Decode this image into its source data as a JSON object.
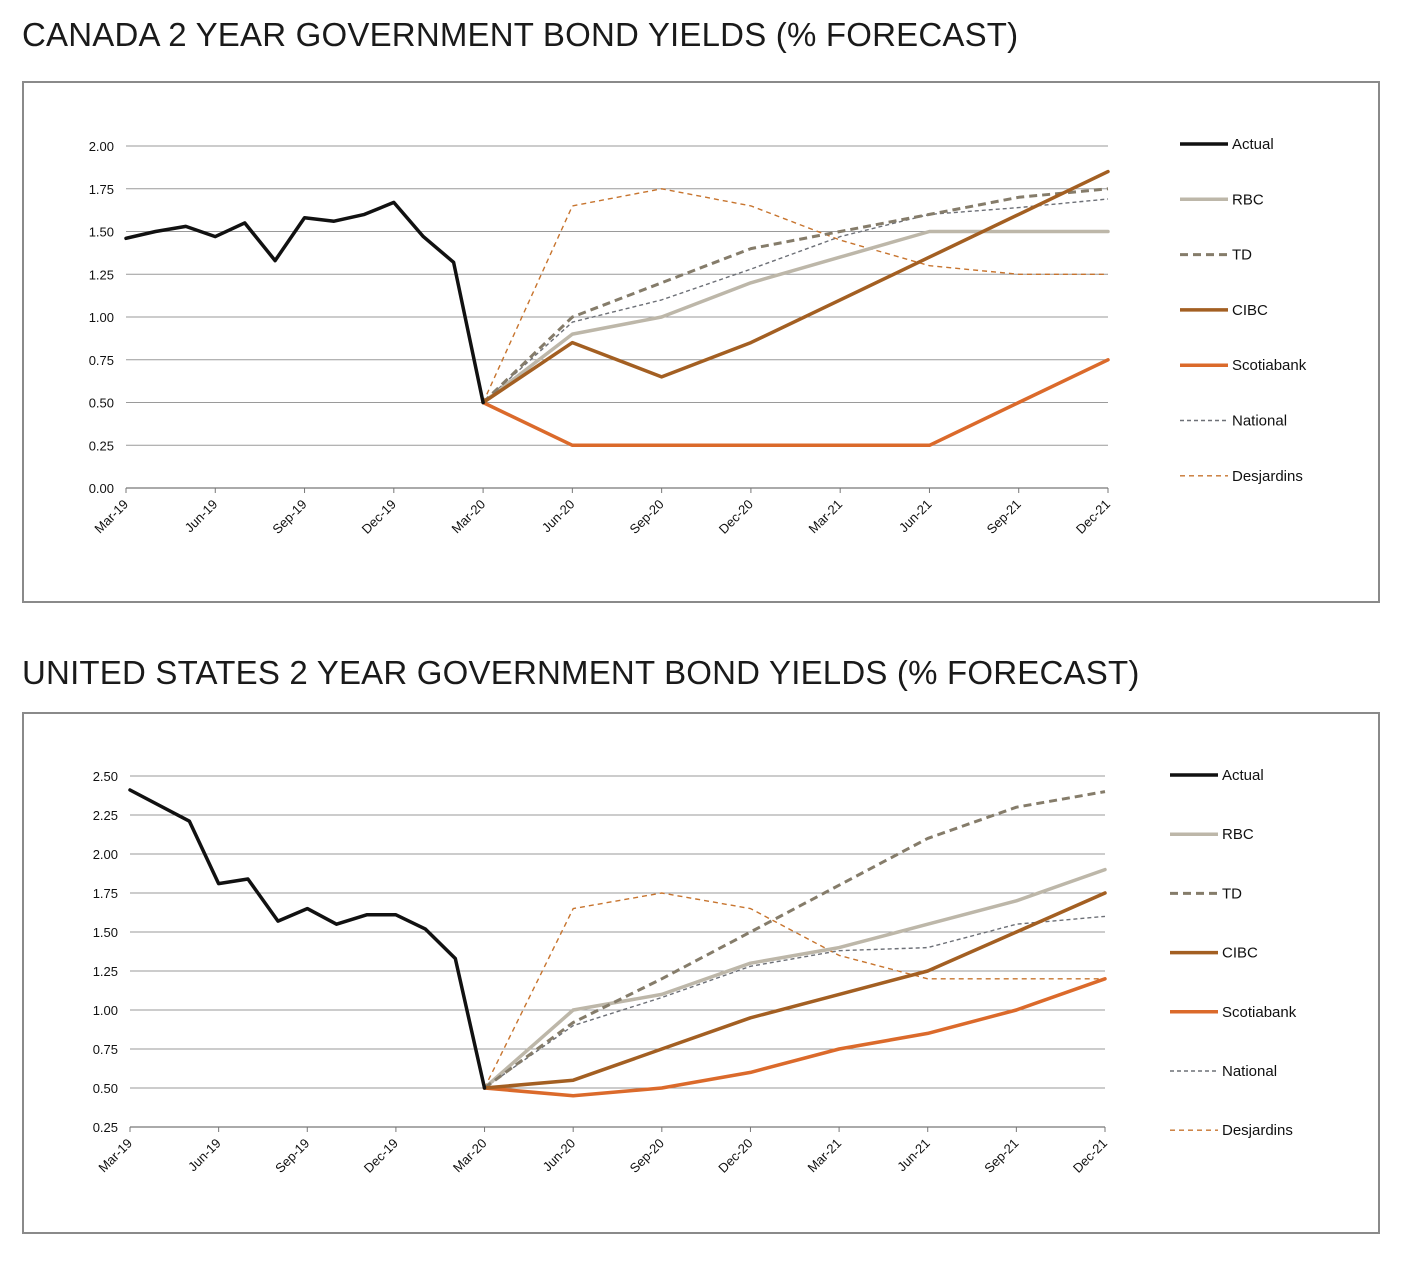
{
  "colors": {
    "Actual": "#111111",
    "RBC": "#bdb7a9",
    "TD": "#857c6a",
    "CIBC": "#a35f22",
    "Scotiabank": "#db6a2b",
    "National": "#6d7077",
    "Desjardins": "#c7742e",
    "grid": "#9a9a9a",
    "border": "#8a8a8a"
  },
  "line_styles": {
    "Actual": {
      "width": 3.5,
      "dash": ""
    },
    "RBC": {
      "width": 3.5,
      "dash": ""
    },
    "TD": {
      "width": 3,
      "dash": "8,5"
    },
    "CIBC": {
      "width": 3.5,
      "dash": ""
    },
    "Scotiabank": {
      "width": 3.5,
      "dash": ""
    },
    "National": {
      "width": 1.4,
      "dash": "4,3"
    },
    "Desjardins": {
      "width": 1.4,
      "dash": "5,4"
    }
  },
  "chart_data": [
    {
      "type": "line",
      "title": "CANADA 2 YEAR GOVERNMENT BOND YIELDS (% FORECAST)",
      "x": [
        "Mar-19",
        "Jun-19",
        "Sep-19",
        "Dec-19",
        "Mar-20",
        "Jun-20",
        "Sep-20",
        "Dec-20",
        "Mar-21",
        "Jun-21",
        "Sep-21",
        "Dec-21"
      ],
      "ylim": [
        0,
        2
      ],
      "yticks": [
        "0.00",
        "0.25",
        "0.50",
        "0.75",
        "1.00",
        "1.25",
        "1.50",
        "1.75",
        "2.00"
      ],
      "grid": true,
      "legend_position": "right",
      "series": [
        {
          "name": "Actual",
          "points": [
            [
              0,
              1.46
            ],
            [
              0.33,
              1.5
            ],
            [
              0.67,
              1.53
            ],
            [
              1,
              1.47
            ],
            [
              1.33,
              1.55
            ],
            [
              1.67,
              1.33
            ],
            [
              2,
              1.58
            ],
            [
              2.33,
              1.56
            ],
            [
              2.67,
              1.6
            ],
            [
              3,
              1.67
            ],
            [
              3.33,
              1.47
            ],
            [
              3.67,
              1.32
            ],
            [
              4,
              0.5
            ]
          ]
        },
        {
          "name": "RBC",
          "points": [
            [
              4,
              0.5
            ],
            [
              5,
              0.9
            ],
            [
              6,
              1.0
            ],
            [
              7,
              1.2
            ],
            [
              8,
              1.35
            ],
            [
              9,
              1.5
            ],
            [
              10,
              1.5
            ],
            [
              11,
              1.5
            ]
          ]
        },
        {
          "name": "TD",
          "points": [
            [
              4,
              0.5
            ],
            [
              5,
              1.0
            ],
            [
              6,
              1.2
            ],
            [
              7,
              1.4
            ],
            [
              8,
              1.5
            ],
            [
              9,
              1.6
            ],
            [
              10,
              1.7
            ],
            [
              11,
              1.75
            ]
          ]
        },
        {
          "name": "CIBC",
          "points": [
            [
              4,
              0.5
            ],
            [
              5,
              0.85
            ],
            [
              6,
              0.65
            ],
            [
              7,
              0.85
            ],
            [
              8,
              1.1
            ],
            [
              9,
              1.35
            ],
            [
              10,
              1.6
            ],
            [
              11,
              1.85
            ]
          ]
        },
        {
          "name": "Scotiabank",
          "points": [
            [
              4,
              0.5
            ],
            [
              5,
              0.25
            ],
            [
              6,
              0.25
            ],
            [
              7,
              0.25
            ],
            [
              8,
              0.25
            ],
            [
              9,
              0.25
            ],
            [
              10,
              0.5
            ],
            [
              11,
              0.75
            ]
          ]
        },
        {
          "name": "National",
          "points": [
            [
              4,
              0.5
            ],
            [
              5,
              0.97
            ],
            [
              6,
              1.1
            ],
            [
              7,
              1.28
            ],
            [
              8,
              1.47
            ],
            [
              9,
              1.6
            ],
            [
              10,
              1.64
            ],
            [
              11,
              1.69
            ]
          ]
        },
        {
          "name": "Desjardins",
          "points": [
            [
              4,
              0.5
            ],
            [
              5,
              1.65
            ],
            [
              6,
              1.75
            ],
            [
              7,
              1.65
            ],
            [
              8,
              1.45
            ],
            [
              9,
              1.3
            ],
            [
              10,
              1.25
            ],
            [
              11,
              1.25
            ]
          ]
        }
      ]
    },
    {
      "type": "line",
      "title": "UNITED STATES 2 YEAR GOVERNMENT BOND YIELDS (% FORECAST)",
      "x": [
        "Mar-19",
        "Jun-19",
        "Sep-19",
        "Dec-19",
        "Mar-20",
        "Jun-20",
        "Sep-20",
        "Dec-20",
        "Mar-21",
        "Jun-21",
        "Sep-21",
        "Dec-21"
      ],
      "ylim": [
        0.25,
        2.5
      ],
      "yticks": [
        "0.25",
        "0.50",
        "0.75",
        "1.00",
        "1.25",
        "1.50",
        "1.75",
        "2.00",
        "2.25",
        "2.50"
      ],
      "grid": true,
      "legend_position": "right",
      "series": [
        {
          "name": "Actual",
          "points": [
            [
              0,
              2.41
            ],
            [
              0.67,
              2.21
            ],
            [
              1,
              1.81
            ],
            [
              1.33,
              1.84
            ],
            [
              1.67,
              1.57
            ],
            [
              2,
              1.65
            ],
            [
              2.33,
              1.55
            ],
            [
              2.67,
              1.61
            ],
            [
              3,
              1.61
            ],
            [
              3.33,
              1.52
            ],
            [
              3.67,
              1.33
            ],
            [
              4,
              0.5
            ]
          ]
        },
        {
          "name": "RBC",
          "points": [
            [
              4,
              0.5
            ],
            [
              5,
              1.0
            ],
            [
              6,
              1.1
            ],
            [
              7,
              1.3
            ],
            [
              8,
              1.4
            ],
            [
              9,
              1.55
            ],
            [
              10,
              1.7
            ],
            [
              11,
              1.9
            ]
          ]
        },
        {
          "name": "TD",
          "points": [
            [
              4,
              0.5
            ],
            [
              5,
              0.92
            ],
            [
              6,
              1.2
            ],
            [
              7,
              1.5
            ],
            [
              8,
              1.8
            ],
            [
              9,
              2.1
            ],
            [
              10,
              2.3
            ],
            [
              11,
              2.4
            ]
          ]
        },
        {
          "name": "CIBC",
          "points": [
            [
              4,
              0.5
            ],
            [
              5,
              0.55
            ],
            [
              6,
              0.75
            ],
            [
              7,
              0.95
            ],
            [
              8,
              1.1
            ],
            [
              9,
              1.25
            ],
            [
              10,
              1.5
            ],
            [
              11,
              1.75
            ]
          ]
        },
        {
          "name": "Scotiabank",
          "points": [
            [
              4,
              0.5
            ],
            [
              5,
              0.45
            ],
            [
              6,
              0.5
            ],
            [
              7,
              0.6
            ],
            [
              8,
              0.75
            ],
            [
              9,
              0.85
            ],
            [
              10,
              1.0
            ],
            [
              11,
              1.2
            ]
          ]
        },
        {
          "name": "National",
          "points": [
            [
              4,
              0.5
            ],
            [
              5,
              0.9
            ],
            [
              6,
              1.08
            ],
            [
              7,
              1.28
            ],
            [
              8,
              1.38
            ],
            [
              9,
              1.4
            ],
            [
              10,
              1.55
            ],
            [
              11,
              1.6
            ]
          ]
        },
        {
          "name": "Desjardins",
          "points": [
            [
              4,
              0.5
            ],
            [
              5,
              1.65
            ],
            [
              6,
              1.75
            ],
            [
              7,
              1.65
            ],
            [
              8,
              1.35
            ],
            [
              9,
              1.2
            ],
            [
              10,
              1.2
            ],
            [
              11,
              1.2
            ]
          ]
        }
      ]
    }
  ]
}
